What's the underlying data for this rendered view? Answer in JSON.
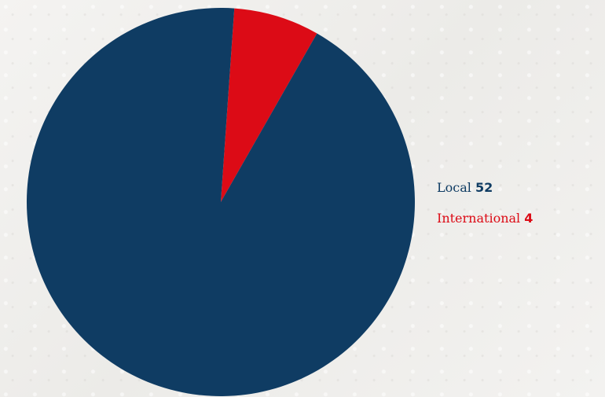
{
  "chart_data": {
    "type": "pie",
    "title": "",
    "series": [
      {
        "name": "Local",
        "value": 52,
        "color": "#0f3c63"
      },
      {
        "name": "International",
        "value": 4,
        "color": "#dc0b16"
      }
    ],
    "legend": "right",
    "legend_entries": [
      {
        "label": "Local",
        "value": "52"
      },
      {
        "label": "International",
        "value": "4"
      }
    ]
  }
}
